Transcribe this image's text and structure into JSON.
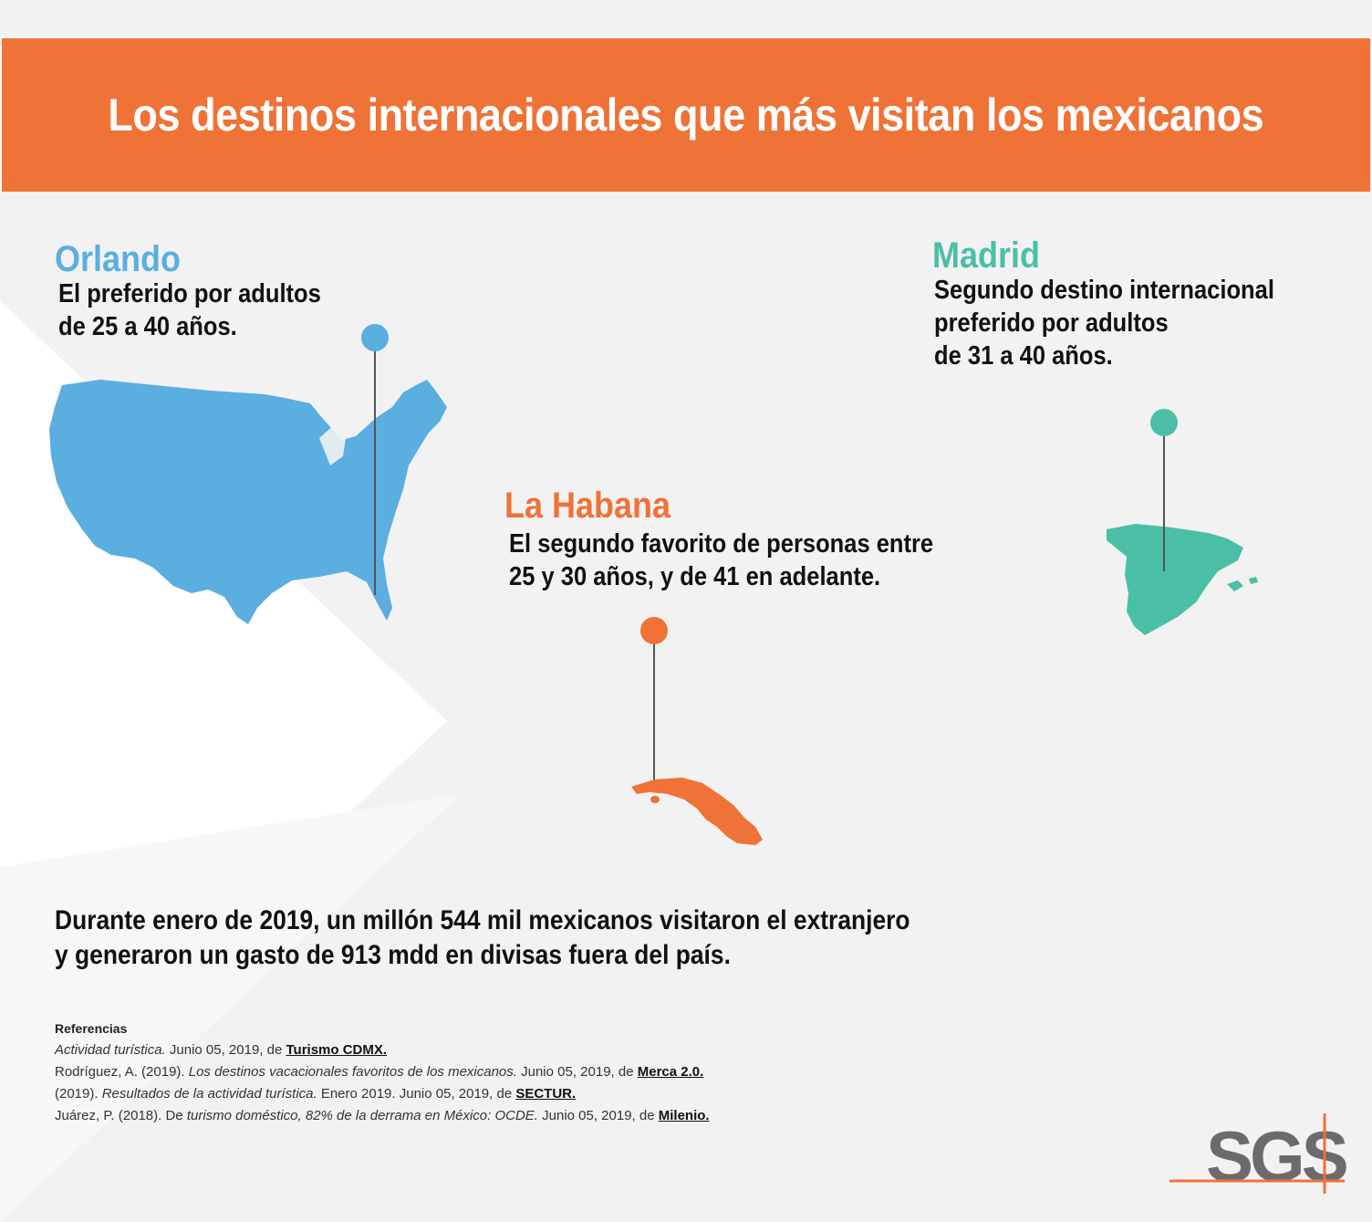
{
  "title": "Los destinos internacionales que más visitan los mexicanos",
  "colors": {
    "header_bg": "#ef7236",
    "orlando": "#5aaee0",
    "habana": "#ef7236",
    "madrid": "#4bbfa5"
  },
  "destinations": {
    "orlando": {
      "name": "Orlando",
      "line1": "El preferido por adultos",
      "line2": "de 25 a 40 años.",
      "map_icon": "usa-map"
    },
    "habana": {
      "name": "La Habana",
      "line1": "El segundo favorito de personas entre",
      "line2": "25 y 30 años, y de 41 en adelante.",
      "map_icon": "cuba-map"
    },
    "madrid": {
      "name": "Madrid",
      "line1": "Segundo destino internacional",
      "line2": "preferido por adultos",
      "line3": "de 31 a 40 años.",
      "map_icon": "spain-map"
    }
  },
  "summary": {
    "line1": "Durante enero de 2019, un millón 544 mil mexicanos visitaron el extranjero",
    "line2": "y generaron un gasto de 913 mdd en divisas fuera del país."
  },
  "references": {
    "title": "Referencias",
    "r1": {
      "title": "Actividad turística.",
      "text": " Junio 05, 2019, de ",
      "link": "Turismo CDMX."
    },
    "r2": {
      "author": "Rodríguez, A. (2019). ",
      "title": "Los destinos vacacionales favoritos de los mexicanos.",
      "text": " Junio 05, 2019, de ",
      "link": "Merca 2.0."
    },
    "r3": {
      "author": "(2019). ",
      "title": "Resultados de la actividad turística.",
      "text": " Enero 2019. Junio 05, 2019, de ",
      "link": "SECTUR."
    },
    "r4": {
      "author": "Juárez, P. (2018). De ",
      "title": "turismo doméstico, 82% de la derrama en México: OCDE.",
      "text": " Junio 05, 2019, de ",
      "link": "Milenio."
    }
  },
  "logo": {
    "text": "SGS"
  }
}
